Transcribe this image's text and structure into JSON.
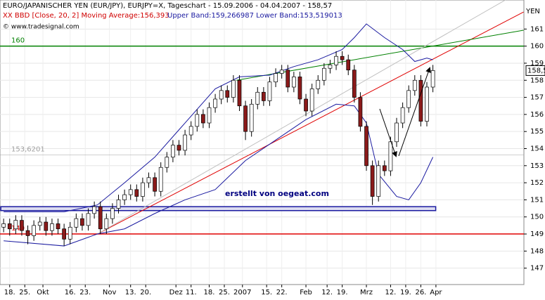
{
  "chart_data": {
    "type": "candlestick",
    "title": "EURO/JAPANISCHER YEN (EUR/JPY), EURJPY=X, Tageschart - 15.09.2006 - 04.04.2007 - 158,57",
    "indicator_label": "XX BBD [Close, 20, 2] Moving Average:156,393",
    "bands_label": "Upper Band:159,266987 Lower Band:153,519013",
    "copyright": "© www.tradesignal.com",
    "currency_label": "YEN",
    "annotation": "erstellt von oegeat.com",
    "last_price": {
      "value": 158.57,
      "label": "158,57"
    },
    "xlim": [
      -1.2,
      172.1
    ],
    "ylim": [
      146.04,
      162.7
    ],
    "grid": true,
    "xticks": [
      {
        "value": 2,
        "label": "18."
      },
      {
        "value": 7,
        "label": "25."
      },
      {
        "value": 13,
        "label": "Okt"
      },
      {
        "value": 22,
        "label": "16."
      },
      {
        "value": 27,
        "label": "23."
      },
      {
        "value": 35,
        "label": "Nov"
      },
      {
        "value": 42,
        "label": "13."
      },
      {
        "value": 47,
        "label": "20."
      },
      {
        "value": 57,
        "label": "Dez"
      },
      {
        "value": 62,
        "label": "11."
      },
      {
        "value": 68,
        "label": "18."
      },
      {
        "value": 73,
        "label": "25."
      },
      {
        "value": 79,
        "label": "2007"
      },
      {
        "value": 87,
        "label": "15."
      },
      {
        "value": 92,
        "label": "22."
      },
      {
        "value": 100,
        "label": "Feb"
      },
      {
        "value": 107,
        "label": "12."
      },
      {
        "value": 112,
        "label": "19."
      },
      {
        "value": 120,
        "label": "Mrz"
      },
      {
        "value": 128,
        "label": "12."
      },
      {
        "value": 133,
        "label": "19."
      },
      {
        "value": 138,
        "label": "26."
      },
      {
        "value": 143,
        "label": "Apr"
      }
    ],
    "yticks": [
      147,
      148,
      149,
      150,
      151,
      152,
      153,
      154,
      155,
      156,
      157,
      158,
      159,
      160,
      161
    ],
    "up_color": "#ffffff",
    "down_color": "#8b1a1a",
    "x": [
      0,
      2,
      4,
      6,
      8,
      10,
      12,
      14,
      16,
      18,
      20,
      22,
      24,
      26,
      28,
      30,
      32,
      34,
      36,
      38,
      40,
      42,
      44,
      46,
      48,
      50,
      52,
      54,
      56,
      58,
      60,
      62,
      64,
      66,
      68,
      70,
      72,
      74,
      76,
      78,
      80,
      82,
      84,
      86,
      88,
      90,
      92,
      94,
      96,
      98,
      100,
      102,
      104,
      106,
      108,
      110,
      112,
      114,
      116,
      118,
      120,
      122,
      124,
      126,
      128,
      130,
      132,
      134,
      136,
      138,
      140,
      142
    ],
    "open": [
      149.4,
      149.6,
      149.3,
      149.8,
      149.2,
      148.9,
      149.5,
      149.7,
      149.2,
      149.6,
      149.3,
      148.7,
      149.4,
      149.9,
      149.5,
      150.2,
      150.6,
      149.3,
      149.9,
      150.5,
      151.0,
      151.3,
      151.6,
      151.2,
      152.0,
      152.3,
      151.5,
      152.9,
      153.5,
      154.2,
      153.9,
      154.8,
      155.3,
      156.0,
      155.5,
      156.4,
      156.9,
      157.4,
      157.0,
      158.0,
      156.5,
      155.0,
      156.6,
      157.3,
      156.8,
      157.9,
      158.4,
      158.6,
      157.6,
      158.2,
      156.9,
      156.2,
      157.5,
      158.0,
      158.7,
      158.9,
      159.4,
      159.2,
      158.6,
      157.0,
      155.3,
      153.0,
      151.2,
      153.0,
      152.7,
      154.4,
      155.5,
      156.4,
      157.4,
      158.0,
      155.6,
      157.6
    ],
    "high": [
      149.9,
      149.9,
      150.1,
      150.1,
      149.5,
      149.8,
      150.0,
      150.0,
      149.9,
      149.9,
      149.6,
      149.7,
      150.2,
      150.2,
      150.5,
      150.9,
      150.9,
      150.2,
      150.8,
      151.3,
      151.6,
      151.9,
      151.9,
      152.3,
      152.6,
      152.6,
      153.2,
      153.8,
      154.5,
      154.5,
      155.1,
      155.6,
      156.3,
      156.3,
      156.7,
      157.2,
      157.7,
      157.7,
      158.3,
      158.3,
      156.8,
      156.9,
      157.6,
      157.6,
      158.2,
      158.7,
      158.9,
      158.9,
      158.5,
      158.5,
      157.2,
      157.8,
      158.3,
      159.0,
      159.2,
      159.7,
      159.7,
      159.5,
      158.9,
      157.3,
      155.6,
      153.3,
      153.3,
      153.3,
      154.7,
      155.8,
      156.7,
      157.7,
      158.3,
      158.3,
      157.9,
      158.9
    ],
    "low": [
      149.1,
      148.9,
      149.0,
      148.9,
      148.4,
      148.6,
      149.2,
      148.9,
      148.9,
      149.0,
      148.3,
      148.4,
      149.1,
      149.2,
      149.2,
      149.9,
      149.0,
      149.0,
      149.6,
      150.2,
      150.7,
      151.0,
      150.9,
      150.9,
      151.7,
      151.2,
      151.2,
      152.6,
      153.2,
      153.6,
      153.6,
      154.5,
      155.0,
      155.2,
      155.2,
      156.1,
      156.6,
      156.7,
      156.7,
      156.2,
      154.5,
      154.7,
      156.3,
      156.5,
      156.5,
      157.6,
      158.1,
      157.3,
      157.3,
      156.6,
      155.9,
      155.9,
      157.2,
      157.7,
      158.4,
      158.6,
      158.9,
      158.3,
      156.7,
      155.0,
      152.7,
      150.7,
      150.9,
      152.4,
      152.4,
      154.1,
      155.2,
      156.1,
      157.1,
      155.3,
      155.3,
      157.3
    ],
    "close": [
      149.6,
      149.3,
      149.8,
      149.2,
      148.9,
      149.5,
      149.7,
      149.2,
      149.6,
      149.3,
      148.7,
      149.4,
      149.9,
      149.5,
      150.2,
      150.6,
      149.3,
      149.9,
      150.5,
      151.0,
      151.3,
      151.6,
      151.2,
      152.0,
      152.3,
      151.5,
      152.9,
      153.5,
      154.2,
      153.9,
      154.8,
      155.3,
      156.0,
      155.5,
      156.4,
      156.9,
      157.4,
      157.0,
      158.0,
      156.5,
      155.0,
      156.6,
      157.3,
      156.8,
      157.9,
      158.4,
      158.6,
      157.6,
      158.2,
      156.9,
      156.2,
      157.5,
      158.0,
      158.7,
      158.9,
      159.4,
      159.2,
      158.6,
      157.0,
      155.3,
      153.0,
      151.2,
      153.0,
      152.7,
      154.4,
      155.5,
      156.4,
      157.4,
      158.0,
      155.6,
      157.6,
      158.57
    ],
    "bands": [
      {
        "color": "#1a1aa0",
        "x": [
          0,
          20,
          31,
          40,
          50,
          60,
          70,
          78,
          88,
          96,
          104,
          112,
          116,
          120,
          126,
          132,
          136,
          140,
          142
        ],
        "values": [
          150.3,
          150.3,
          150.7,
          152.0,
          153.5,
          155.5,
          157.5,
          158.2,
          158.3,
          158.8,
          159.2,
          159.8,
          160.5,
          161.3,
          160.5,
          159.8,
          159.1,
          159.3,
          159.2
        ]
      },
      {
        "color": "#1a1aa0",
        "x": [
          0,
          20,
          31,
          40,
          50,
          60,
          70,
          80,
          90,
          100,
          110,
          116,
          120,
          124,
          130,
          134,
          138,
          142
        ],
        "values": [
          148.6,
          148.3,
          149.0,
          149.3,
          150.2,
          151.0,
          151.6,
          153.3,
          154.5,
          155.7,
          156.6,
          156.5,
          155.5,
          152.5,
          151.2,
          151.0,
          152.0,
          153.5
        ]
      }
    ],
    "levels": [
      {
        "value": 160,
        "color": "#008000"
      },
      {
        "value": 149,
        "color": "#e00000"
      },
      {
        "value": 153.6201,
        "label": "153,6201",
        "color": "#a0a0a0"
      }
    ],
    "zone": {
      "range": [
        150.37,
        150.6
      ],
      "xrange": [
        0,
        142
      ],
      "color": "#1a1aa0"
    },
    "trendlines": [
      {
        "x": [
          31,
          172
        ],
        "y": [
          149,
          162.0
        ],
        "color": "#e00000"
      },
      {
        "x": [
          77,
          172
        ],
        "y": [
          158,
          160.93
        ],
        "color": "#008000"
      },
      {
        "x": [
          31,
          166
        ],
        "y": [
          149,
          162.7
        ],
        "color": "#c0c0c0"
      }
    ]
  }
}
